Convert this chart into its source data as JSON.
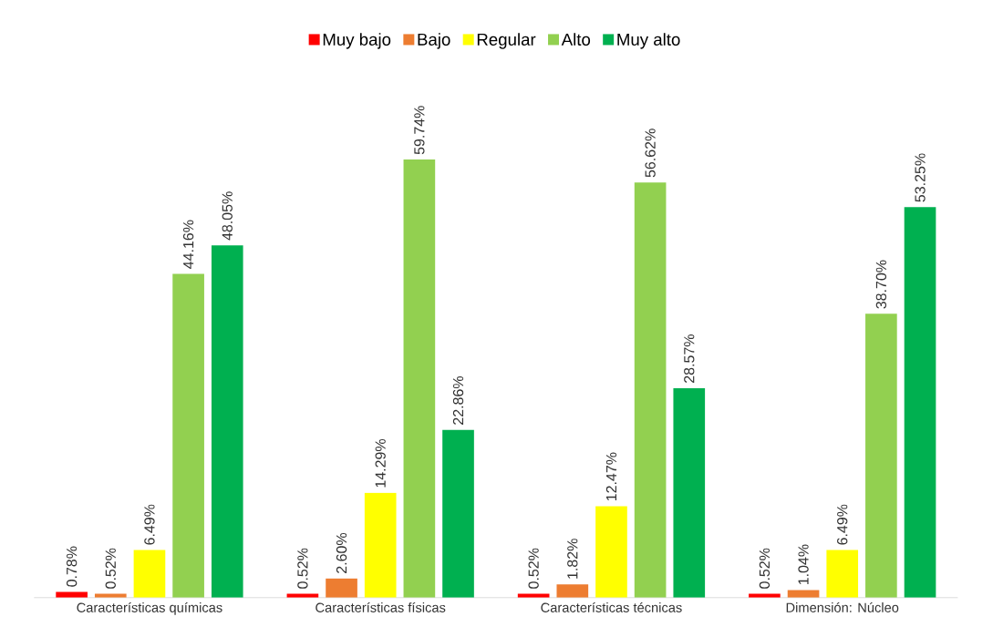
{
  "chart_data": {
    "type": "bar",
    "categories": [
      "Características químicas",
      "Características físicas",
      "Características técnicas",
      "Dimensión: Núcleo"
    ],
    "series": [
      {
        "name": "Muy bajo",
        "color": "#ff0000",
        "values": [
          0.78,
          0.52,
          0.52,
          0.52
        ],
        "value_labels": [
          "0.78%",
          "0.52%",
          "0.52%",
          "0.52%"
        ]
      },
      {
        "name": "Bajo",
        "color": "#ed7d31",
        "values": [
          0.52,
          2.6,
          1.82,
          1.04
        ],
        "value_labels": [
          "0.52%",
          "2.60%",
          "1.82%",
          "1.04%"
        ]
      },
      {
        "name": "Regular",
        "color": "#ffff00",
        "values": [
          6.49,
          14.29,
          12.47,
          6.49
        ],
        "value_labels": [
          "6.49%",
          "14.29%",
          "12.47%",
          "6.49%"
        ]
      },
      {
        "name": "Alto",
        "color": "#92d050",
        "values": [
          44.16,
          59.74,
          56.62,
          38.7
        ],
        "value_labels": [
          "44.16%",
          "59.74%",
          "56.62%",
          "38.70%"
        ]
      },
      {
        "name": "Muy alto",
        "color": "#00b050",
        "values": [
          48.05,
          22.86,
          28.57,
          53.25
        ],
        "value_labels": [
          "48.05%",
          "22.86%",
          "28.57%",
          "53.25%"
        ]
      }
    ],
    "legend": "top"
  }
}
